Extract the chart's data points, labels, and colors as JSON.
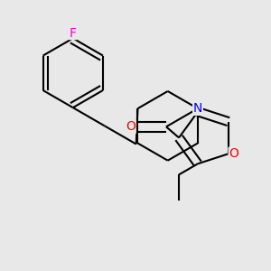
{
  "bg_color": "#e8e8e8",
  "bond_color": "#000000",
  "bond_width": 1.5,
  "atom_colors": {
    "F": "#ff00cc",
    "N": "#0000ff",
    "O": "#ff0000"
  },
  "font_size": 10
}
